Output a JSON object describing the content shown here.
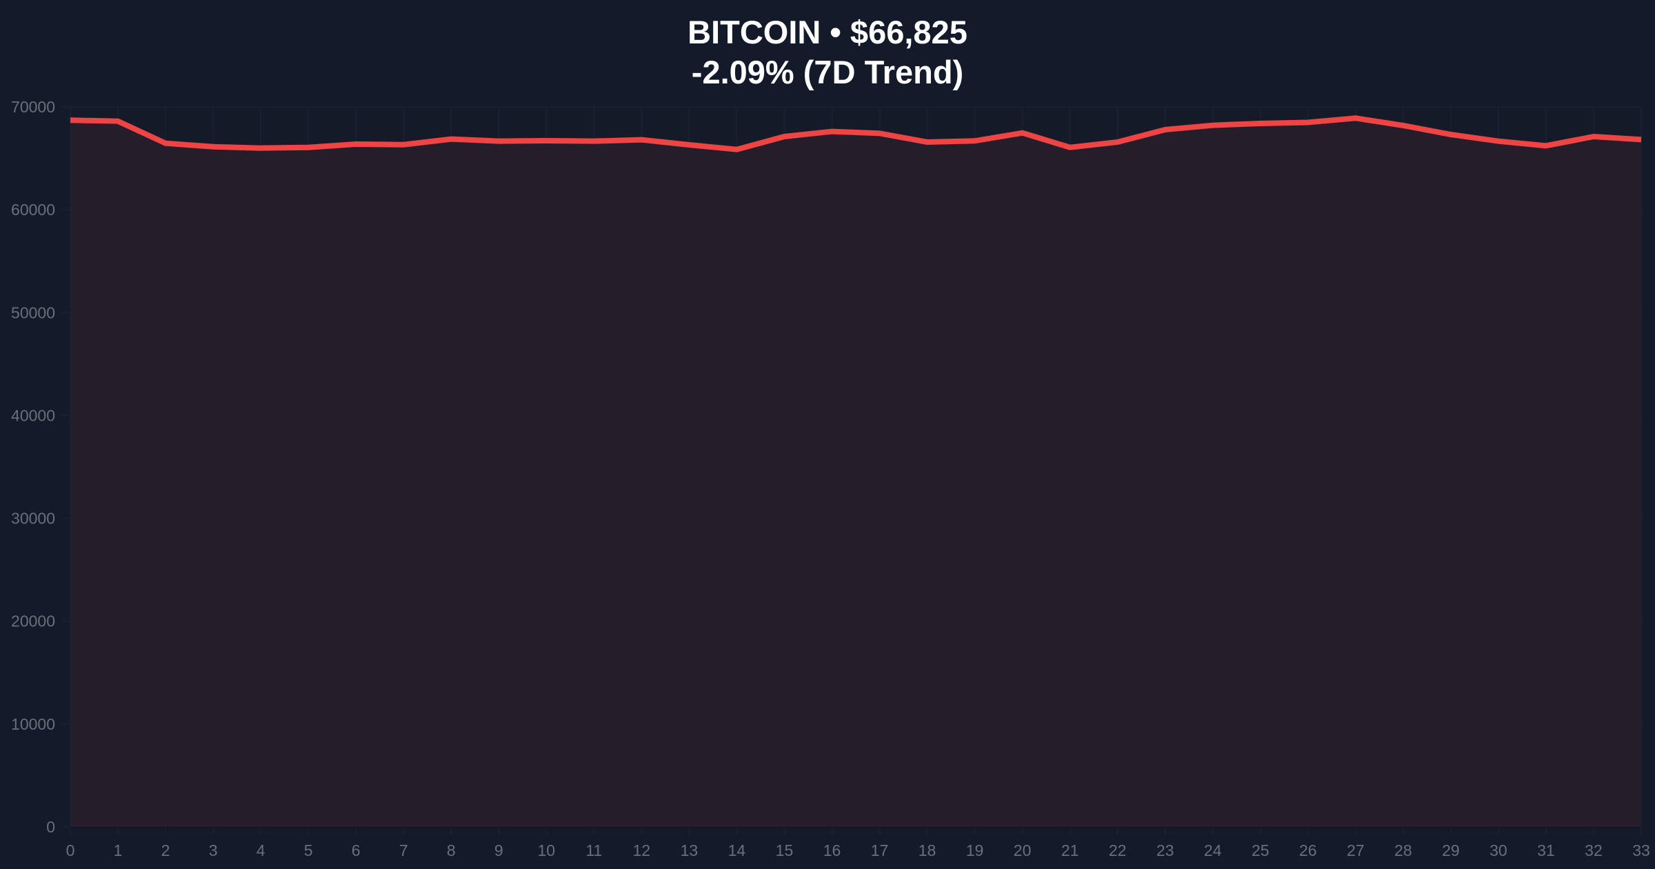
{
  "header": {
    "title_line1": "BITCOIN • $66,825",
    "title_line2": "-2.09% (7D Trend)"
  },
  "colors": {
    "background": "#131a29",
    "line": "#ef4444",
    "fill": "#281d2b",
    "grid": "#1a2030",
    "tick_label": "#6b6f78",
    "title": "#ffffff"
  },
  "chart_data": {
    "type": "area",
    "title": "BITCOIN • $66,825",
    "subtitle": "-2.09% (7D Trend)",
    "xlabel": "",
    "ylabel": "",
    "x": [
      0,
      1,
      2,
      3,
      4,
      5,
      6,
      7,
      8,
      9,
      10,
      11,
      12,
      13,
      14,
      15,
      16,
      17,
      18,
      19,
      20,
      21,
      22,
      23,
      24,
      25,
      26,
      27,
      28,
      29,
      30,
      31,
      32,
      33
    ],
    "series": [
      {
        "name": "BITCOIN",
        "values": [
          68706,
          68613,
          66467,
          66131,
          65997,
          66064,
          66380,
          66333,
          66870,
          66669,
          66715,
          66669,
          66803,
          66313,
          65864,
          67117,
          67608,
          67432,
          66581,
          66695,
          67474,
          66064,
          66581,
          67788,
          68211,
          68392,
          68493,
          68908,
          68190,
          67318,
          66669,
          66224,
          67117,
          66825
        ]
      }
    ],
    "xlim": [
      0,
      33
    ],
    "ylim": [
      0,
      70000
    ],
    "yticks": [
      0,
      10000,
      20000,
      30000,
      40000,
      50000,
      60000,
      70000
    ],
    "xticks": [
      0,
      1,
      2,
      3,
      4,
      5,
      6,
      7,
      8,
      9,
      10,
      11,
      12,
      13,
      14,
      15,
      16,
      17,
      18,
      19,
      20,
      21,
      22,
      23,
      24,
      25,
      26,
      27,
      28,
      29,
      30,
      31,
      32,
      33
    ],
    "grid": true,
    "legend": "none"
  }
}
